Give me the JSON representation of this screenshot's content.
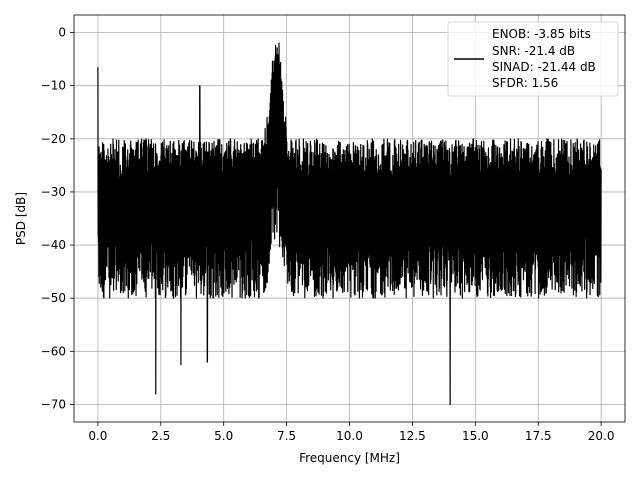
{
  "chart_data": {
    "type": "line",
    "xlabel": "Frequency [MHz]",
    "ylabel": "PSD [dB]",
    "xlim": [
      -0.95,
      20.95
    ],
    "ylim": [
      -73.3,
      3.3
    ],
    "xticks": [
      0.0,
      2.5,
      5.0,
      7.5,
      10.0,
      12.5,
      15.0,
      17.5,
      20.0
    ],
    "xtick_labels": [
      "0.0",
      "2.5",
      "5.0",
      "7.5",
      "10.0",
      "12.5",
      "15.0",
      "17.5",
      "20.0"
    ],
    "yticks": [
      0,
      -10,
      -20,
      -30,
      -40,
      -50,
      -60,
      -70
    ],
    "ytick_labels": [
      "0",
      "−10",
      "−20",
      "−30",
      "−40",
      "−50",
      "−60",
      "−70"
    ],
    "grid": true,
    "legend_position": "top-right",
    "legend_entries": [
      "ENOB: -3.85 bits",
      "SNR: -21.4 dB",
      "SINAD: -21.44 dB",
      "SFDR: 1.56"
    ],
    "series": [
      {
        "color": "#000000",
        "x_range": [
          0.0,
          20.0
        ],
        "noise_floor_band_db": [
          -50,
          -20
        ],
        "spikes": [
          {
            "x": 0.0,
            "y": -6.5
          },
          {
            "x": 2.3,
            "y": -68.0
          },
          {
            "x": 3.3,
            "y": -62.5
          },
          {
            "x": 4.05,
            "y": -10.0
          },
          {
            "x": 4.35,
            "y": -62.0
          },
          {
            "x": 14.0,
            "y": -70.0
          }
        ],
        "peaks": [
          {
            "x": 7.1,
            "y": -1.5,
            "width_mhz": 0.6
          }
        ]
      }
    ]
  }
}
